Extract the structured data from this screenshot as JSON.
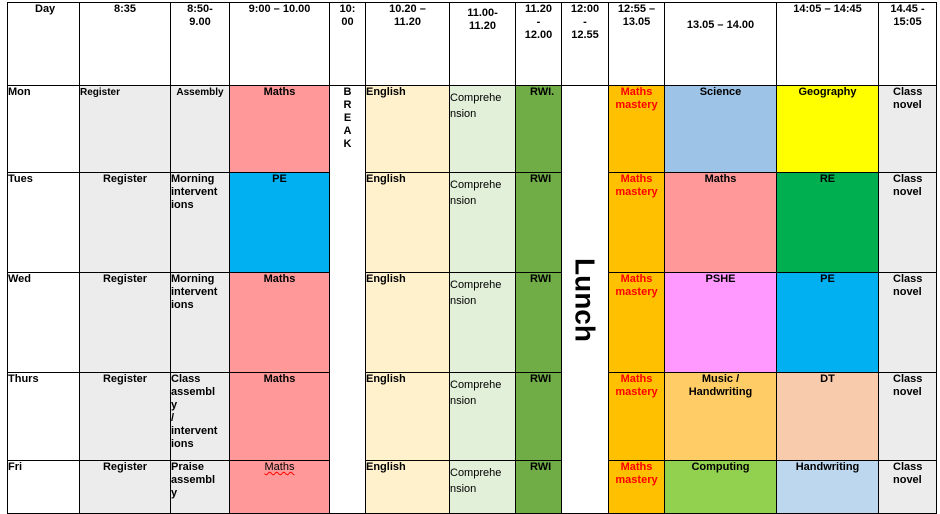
{
  "header": {
    "day": "Day",
    "t835": "8:35",
    "t850": "8:50-\n9.00",
    "t900": "9:00 – 10.00",
    "t1000": "10:\n00",
    "t1020": "10.20 –\n11.20",
    "t1100": "11.00-\n11.20",
    "t1120": "11.20\n-\n12.00",
    "t1200": "12:00\n-\n12.55",
    "t1255": "12:55 –\n13.05",
    "t1305": "13.05 – 14.00",
    "t1405": "14:05 – 14:45",
    "t1445": "14.45 -\n15:05"
  },
  "break_letters": [
    "B",
    "R",
    "E",
    "A",
    "K"
  ],
  "lunch": "Lunch",
  "rows": [
    {
      "day": "Mon",
      "reg": "Register",
      "early": "Assembly",
      "s1": "Maths",
      "eng": "English",
      "comp": "Comprehe\nnsion",
      "rwi": "RWI.",
      "mm": "Maths\nmastery",
      "s2": "Science",
      "s3": "Geography",
      "end": "Class\nnovel"
    },
    {
      "day": "Tues",
      "reg": "Register",
      "early": "Morning\nintervent\nions",
      "s1": "PE",
      "eng": "English",
      "comp": "Comprehe\nnsion",
      "rwi": "RWI",
      "mm": "Maths\nmastery",
      "s2": "Maths",
      "s3": "RE",
      "end": "Class\nnovel"
    },
    {
      "day": "Wed",
      "reg": "Register",
      "early": "Morning\nintervent\nions",
      "s1": "Maths",
      "eng": "English",
      "comp": "Comprehe\nnsion",
      "rwi": "RWI",
      "mm": "Maths\nmastery",
      "s2": "PSHE",
      "s3": "PE",
      "end": "Class\nnovel"
    },
    {
      "day": "Thurs",
      "reg": "Register",
      "early": "Class\nassembl\ny\n/\nintervent\nions",
      "s1": "Maths",
      "eng": "English",
      "comp": "Comprehe\nnsion",
      "rwi": "RWI",
      "mm": "Maths\nmastery",
      "s2": "Music /\nHandwriting",
      "s3": "DT",
      "end": "Class\nnovel"
    },
    {
      "day": "Fri",
      "reg": "Register",
      "early": "Praise\nassembl\ny",
      "s1": "Maths",
      "eng": "English",
      "comp": "Comprehe\nnsion",
      "rwi": "RWI",
      "mm": "Maths\nmastery",
      "s2": "Computing",
      "s3": "Handwriting",
      "end": "Class\nnovel"
    }
  ],
  "colors": {
    "maths": "#ff9999",
    "pe": "#00b0f0",
    "science": "#9dc3e6",
    "geography": "#ffff00",
    "re": "#00b050",
    "pshe": "#ff99ff",
    "music": "#ffcc66",
    "dt": "#f8cbad",
    "computing": "#92d050",
    "handwriting": "#bdd7ee",
    "maths_wide": "#ff9999"
  }
}
